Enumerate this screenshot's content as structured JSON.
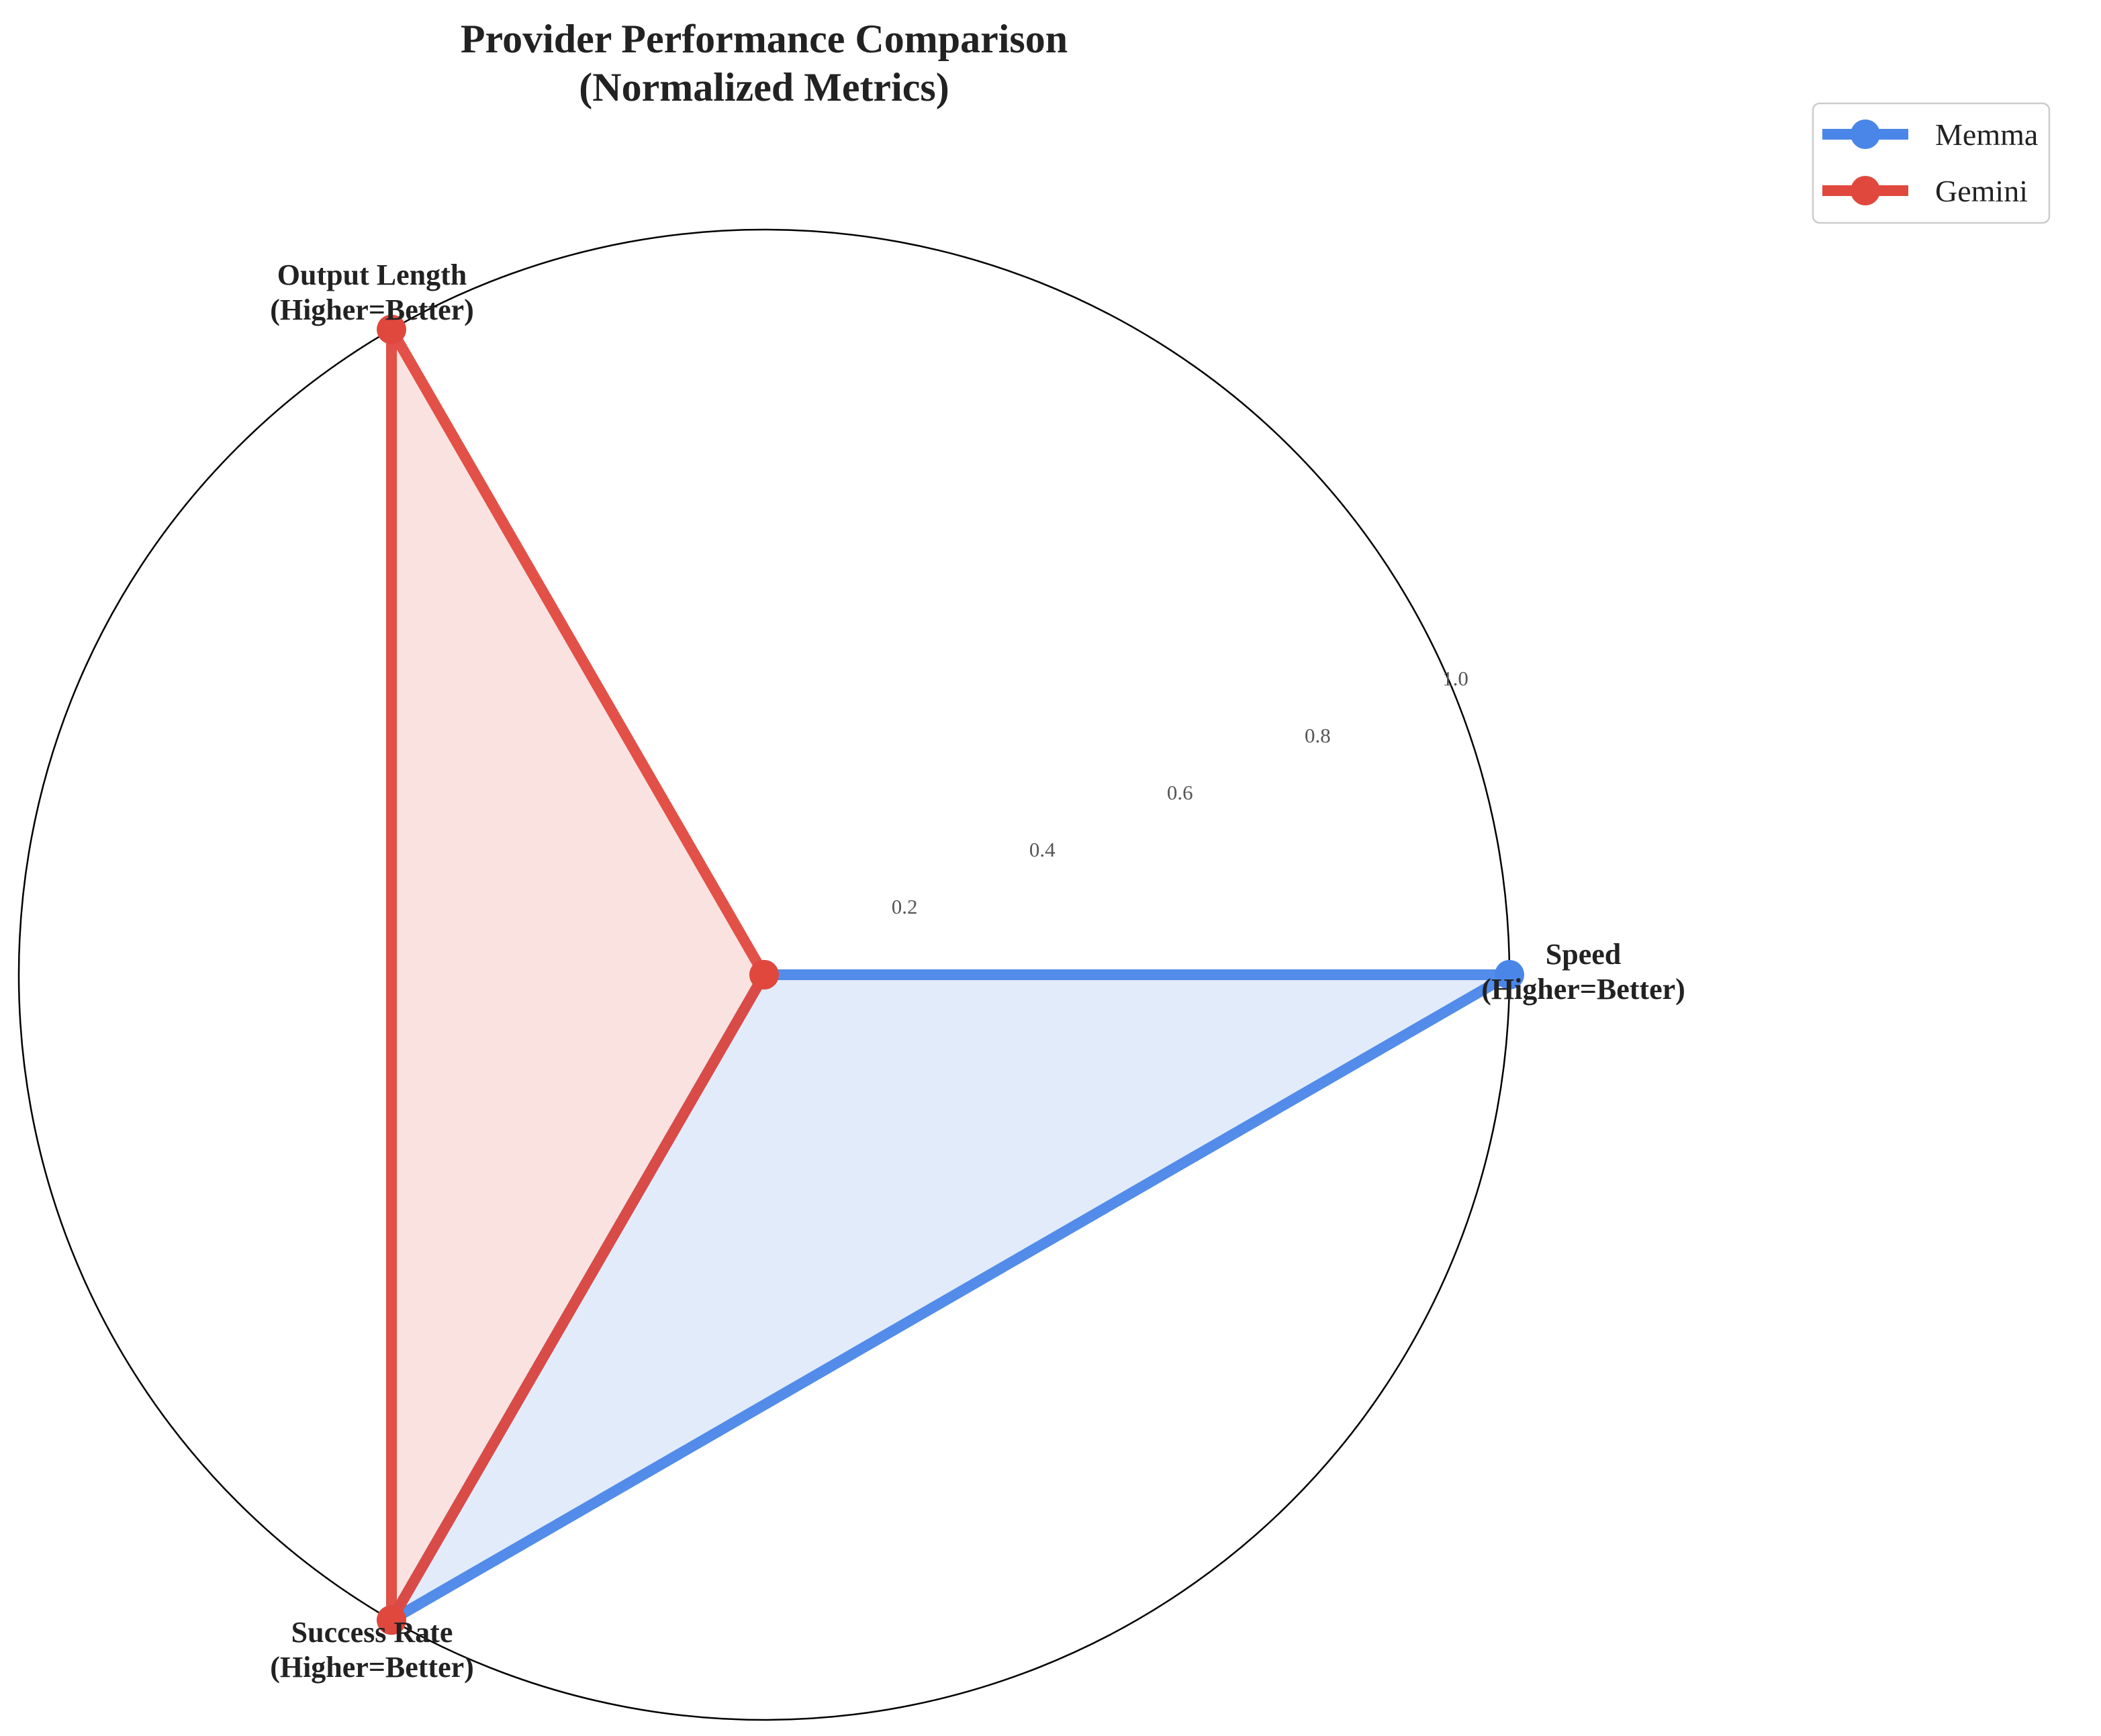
{
  "chart_data": {
    "type": "radar",
    "title": [
      "Provider Performance Comparison",
      "(Normalized Metrics)"
    ],
    "axes": [
      {
        "label": [
          "Speed",
          "(Higher=Better)"
        ],
        "angle_deg": 0
      },
      {
        "label": [
          "Output Length",
          "(Higher=Better)"
        ],
        "angle_deg": 120
      },
      {
        "label": [
          "Success Rate",
          "(Higher=Better)"
        ],
        "angle_deg": 240
      }
    ],
    "rlim": [
      0,
      1
    ],
    "rticks": [
      "0.2",
      "0.4",
      "0.6",
      "0.8",
      "1.0"
    ],
    "rtick_values": [
      0.2,
      0.4,
      0.6,
      0.8,
      1.0
    ],
    "grid": false,
    "legend": "top-right",
    "series": [
      {
        "name": "Memma",
        "color": "#4a86e8",
        "fill": "#dde7f8",
        "values": [
          1.0,
          0.0,
          1.0
        ]
      },
      {
        "name": "Gemini",
        "color": "#e0483e",
        "fill": "#f8ddd9",
        "values": [
          0.0,
          1.0,
          1.0
        ]
      }
    ]
  }
}
